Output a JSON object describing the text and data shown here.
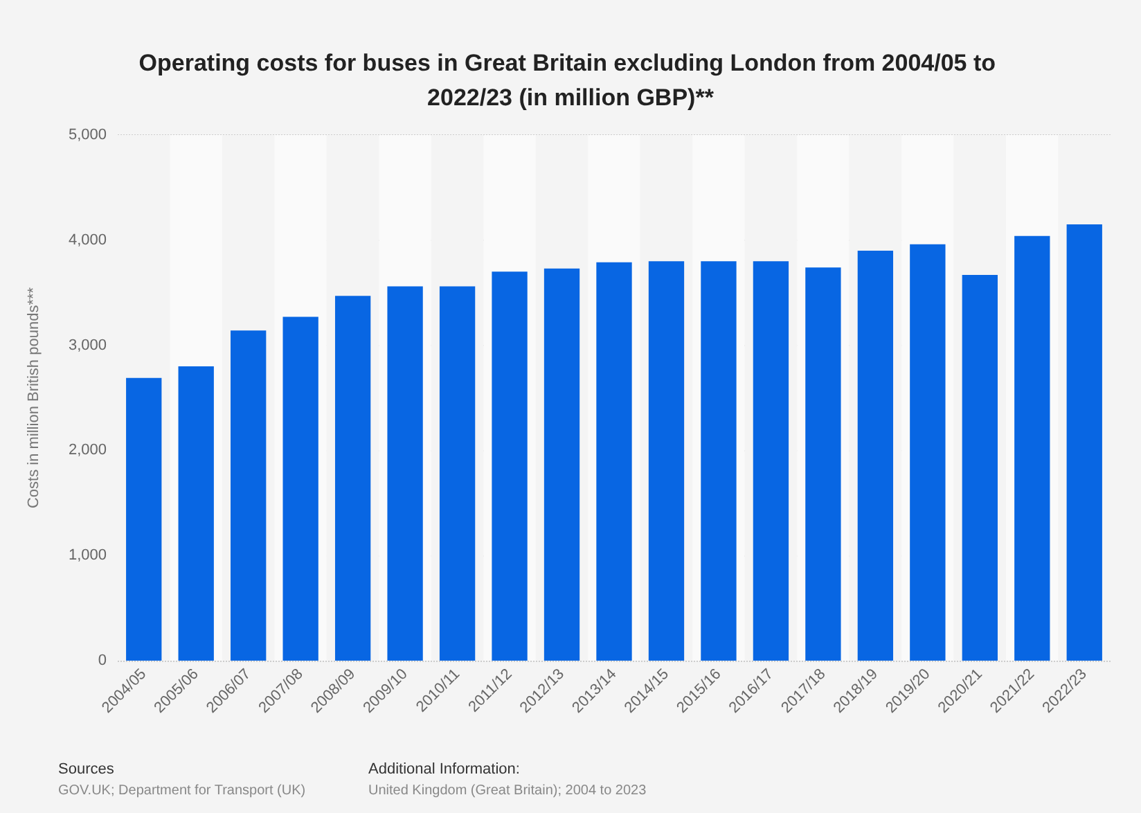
{
  "chart_data": {
    "type": "bar",
    "title": "Operating costs for buses in Great Britain excluding London from 2004/05 to 2022/23 (in million GBP)**",
    "ylabel": "Costs in million British pounds***",
    "categories": [
      "2004/05",
      "2005/06",
      "2006/07",
      "2007/08",
      "2008/09",
      "2009/10",
      "2010/11",
      "2011/12",
      "2012/13",
      "2013/14",
      "2014/15",
      "2015/16",
      "2016/17",
      "2017/18",
      "2018/19",
      "2019/20",
      "2020/21",
      "2021/22",
      "2022/23"
    ],
    "values": [
      2690,
      2800,
      3140,
      3270,
      3470,
      3560,
      3560,
      3700,
      3730,
      3790,
      3800,
      3800,
      3800,
      3740,
      3900,
      3960,
      3670,
      4040,
      4150
    ],
    "color": "#0866e3",
    "ylim": [
      0,
      5000
    ],
    "yticks": [
      0,
      {
        "value": 1000,
        "label": "1,000"
      },
      {
        "value": 2000,
        "label": "2,000"
      },
      {
        "value": 3000,
        "label": "3,000"
      },
      {
        "value": 4000,
        "label": "4,000"
      },
      {
        "value": 5000,
        "label": "5,000"
      }
    ],
    "grid": "y",
    "annotations": [
      "Sources",
      "GOV.UK; Department for Transport (UK)",
      "Additional Information:",
      "United Kingdom (Great Britain); 2004 to 2023"
    ]
  }
}
